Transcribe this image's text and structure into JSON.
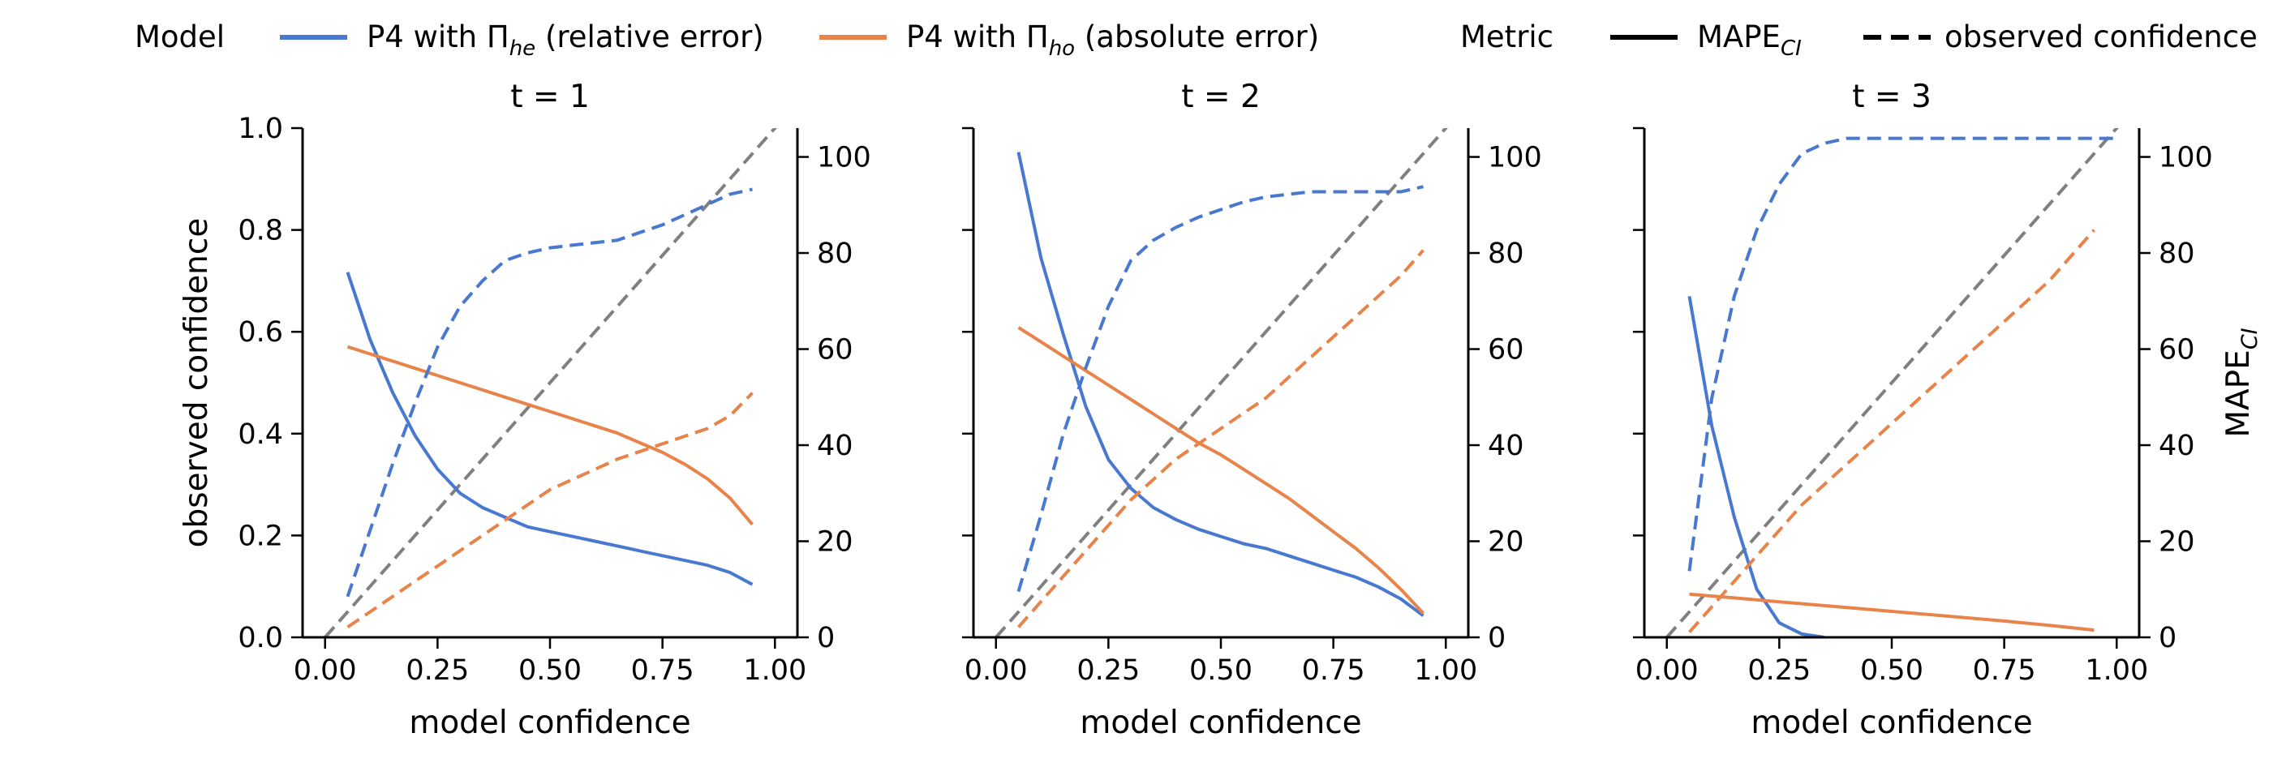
{
  "legend": {
    "model_title": "Model",
    "model_entries": [
      {
        "prefix": "P4 with Π",
        "sub": "he",
        "suffix": " (relative error)",
        "color": "#4878cf"
      },
      {
        "prefix": "P4 with Π",
        "sub": "ho",
        "suffix": " (absolute error)",
        "color": "#e8834a"
      }
    ],
    "metric_title": "Metric",
    "metric_entries": [
      {
        "text": "MAPE",
        "sub": "CI",
        "style": "solid"
      },
      {
        "text": "observed confidence",
        "sub": "",
        "style": "dashed"
      }
    ]
  },
  "colors": {
    "he": "#4878cf",
    "ho": "#e8834a",
    "reference": "#808080"
  },
  "axes_labels": {
    "xlabel": "model confidence",
    "left_ylabel": "observed confidence",
    "right_ylabel_main": "MAPE",
    "right_ylabel_sub": "CI"
  },
  "chart_data": [
    {
      "type": "line",
      "title": "t = 1",
      "xlim": [
        -0.05,
        1.05
      ],
      "ylim_left": [
        0,
        1.0
      ],
      "ylim_right": [
        0,
        106
      ],
      "xticks": [
        "0.00",
        "0.25",
        "0.50",
        "0.75",
        "1.00"
      ],
      "yticks_left": [
        "0.0",
        "0.2",
        "0.4",
        "0.6",
        "0.8",
        "1.0"
      ],
      "yticks_right": [
        "0",
        "20",
        "40",
        "60",
        "80",
        "100"
      ],
      "show_left_labels": true,
      "show_right_label": false,
      "reference_line": {
        "x": [
          0,
          1.05
        ],
        "y": [
          0,
          1.05
        ]
      },
      "series": [
        {
          "model": "he",
          "metric": "MAPE_CI",
          "axis": "right",
          "x": [
            0.05,
            0.1,
            0.15,
            0.2,
            0.25,
            0.3,
            0.35,
            0.4,
            0.45,
            0.5,
            0.55,
            0.6,
            0.65,
            0.7,
            0.75,
            0.8,
            0.85,
            0.9,
            0.95
          ],
          "y": [
            76,
            62,
            51,
            42,
            35,
            30,
            27,
            25,
            23,
            22,
            21,
            20,
            19,
            18,
            17,
            16,
            15,
            13.5,
            11
          ]
        },
        {
          "model": "ho",
          "metric": "MAPE_CI",
          "axis": "right",
          "x": [
            0.05,
            0.1,
            0.15,
            0.2,
            0.25,
            0.3,
            0.35,
            0.4,
            0.45,
            0.5,
            0.55,
            0.6,
            0.65,
            0.7,
            0.75,
            0.8,
            0.85,
            0.9,
            0.95
          ],
          "y": [
            60.5,
            59,
            57.5,
            56,
            54.5,
            53,
            51.5,
            50,
            48.5,
            47,
            45.5,
            44,
            42.5,
            40.5,
            38.5,
            36,
            33,
            29,
            23.5
          ]
        },
        {
          "model": "he",
          "metric": "observed_confidence",
          "axis": "left",
          "x": [
            0.05,
            0.1,
            0.15,
            0.2,
            0.25,
            0.3,
            0.35,
            0.4,
            0.45,
            0.5,
            0.55,
            0.6,
            0.65,
            0.7,
            0.75,
            0.8,
            0.85,
            0.9,
            0.95
          ],
          "y": [
            0.08,
            0.21,
            0.34,
            0.46,
            0.57,
            0.65,
            0.7,
            0.74,
            0.755,
            0.765,
            0.77,
            0.775,
            0.78,
            0.795,
            0.81,
            0.83,
            0.85,
            0.87,
            0.88
          ]
        },
        {
          "model": "ho",
          "metric": "observed_confidence",
          "axis": "left",
          "x": [
            0.05,
            0.1,
            0.15,
            0.2,
            0.25,
            0.3,
            0.35,
            0.4,
            0.45,
            0.5,
            0.55,
            0.6,
            0.65,
            0.7,
            0.75,
            0.8,
            0.85,
            0.9,
            0.95
          ],
          "y": [
            0.02,
            0.05,
            0.08,
            0.11,
            0.14,
            0.17,
            0.2,
            0.23,
            0.26,
            0.29,
            0.31,
            0.33,
            0.35,
            0.365,
            0.38,
            0.395,
            0.41,
            0.435,
            0.48
          ]
        }
      ]
    },
    {
      "type": "line",
      "title": "t = 2",
      "xlim": [
        -0.05,
        1.05
      ],
      "ylim_left": [
        0,
        1.0
      ],
      "ylim_right": [
        0,
        106
      ],
      "xticks": [
        "0.00",
        "0.25",
        "0.50",
        "0.75",
        "1.00"
      ],
      "yticks_left": [
        "0.0",
        "0.2",
        "0.4",
        "0.6",
        "0.8",
        "1.0"
      ],
      "yticks_right": [
        "0",
        "20",
        "40",
        "60",
        "80",
        "100"
      ],
      "show_left_labels": false,
      "show_right_label": false,
      "reference_line": {
        "x": [
          0,
          1.05
        ],
        "y": [
          0,
          1.05
        ]
      },
      "series": [
        {
          "model": "he",
          "metric": "MAPE_CI",
          "axis": "right",
          "x": [
            0.05,
            0.1,
            0.15,
            0.2,
            0.25,
            0.3,
            0.35,
            0.4,
            0.45,
            0.5,
            0.55,
            0.6,
            0.65,
            0.7,
            0.75,
            0.8,
            0.85,
            0.9,
            0.95
          ],
          "y": [
            101,
            79,
            63,
            48,
            37,
            31,
            27,
            24.5,
            22.5,
            21,
            19.5,
            18.5,
            17,
            15.5,
            14,
            12.5,
            10.5,
            8,
            4.5
          ]
        },
        {
          "model": "ho",
          "metric": "MAPE_CI",
          "axis": "right",
          "x": [
            0.05,
            0.1,
            0.15,
            0.2,
            0.25,
            0.3,
            0.35,
            0.4,
            0.45,
            0.5,
            0.55,
            0.6,
            0.65,
            0.7,
            0.75,
            0.8,
            0.85,
            0.9,
            0.95
          ],
          "y": [
            64.5,
            61.5,
            58.5,
            55.5,
            52.5,
            49.5,
            46.5,
            43.5,
            40.5,
            38,
            35,
            32,
            29,
            25.5,
            22,
            18.5,
            14.5,
            10,
            5
          ]
        },
        {
          "model": "he",
          "metric": "observed_confidence",
          "axis": "left",
          "x": [
            0.05,
            0.1,
            0.15,
            0.2,
            0.25,
            0.3,
            0.35,
            0.4,
            0.45,
            0.5,
            0.55,
            0.6,
            0.65,
            0.7,
            0.75,
            0.8,
            0.85,
            0.9,
            0.95
          ],
          "y": [
            0.09,
            0.24,
            0.4,
            0.53,
            0.65,
            0.74,
            0.78,
            0.805,
            0.825,
            0.84,
            0.855,
            0.865,
            0.87,
            0.875,
            0.875,
            0.875,
            0.875,
            0.875,
            0.885
          ]
        },
        {
          "model": "ho",
          "metric": "observed_confidence",
          "axis": "left",
          "x": [
            0.05,
            0.1,
            0.15,
            0.2,
            0.25,
            0.3,
            0.35,
            0.4,
            0.45,
            0.5,
            0.55,
            0.6,
            0.65,
            0.7,
            0.75,
            0.8,
            0.85,
            0.9,
            0.95
          ],
          "y": [
            0.02,
            0.07,
            0.12,
            0.17,
            0.22,
            0.27,
            0.31,
            0.35,
            0.38,
            0.41,
            0.44,
            0.47,
            0.51,
            0.55,
            0.59,
            0.63,
            0.67,
            0.71,
            0.76
          ]
        }
      ]
    },
    {
      "type": "line",
      "title": "t = 3",
      "xlim": [
        -0.05,
        1.05
      ],
      "ylim_left": [
        0,
        1.0
      ],
      "ylim_right": [
        0,
        106
      ],
      "xticks": [
        "0.00",
        "0.25",
        "0.50",
        "0.75",
        "1.00"
      ],
      "yticks_left": [
        "0.0",
        "0.2",
        "0.4",
        "0.6",
        "0.8",
        "1.0"
      ],
      "yticks_right": [
        "0",
        "20",
        "40",
        "60",
        "80",
        "100"
      ],
      "show_left_labels": false,
      "show_right_label": true,
      "reference_line": {
        "x": [
          0,
          1.05
        ],
        "y": [
          0,
          1.05
        ]
      },
      "series": [
        {
          "model": "he",
          "metric": "MAPE_CI",
          "axis": "right",
          "x": [
            0.05,
            0.1,
            0.15,
            0.2,
            0.25,
            0.3,
            0.35
          ],
          "y": [
            71,
            44,
            25,
            10,
            3,
            0.7,
            0
          ]
        },
        {
          "model": "ho",
          "metric": "MAPE_CI",
          "axis": "right",
          "x": [
            0.05,
            0.15,
            0.25,
            0.35,
            0.45,
            0.55,
            0.65,
            0.75,
            0.85,
            0.95
          ],
          "y": [
            9,
            8.2,
            7.4,
            6.6,
            5.8,
            5,
            4.2,
            3.4,
            2.5,
            1.5
          ]
        },
        {
          "model": "he",
          "metric": "observed_confidence",
          "axis": "left",
          "x": [
            0.05,
            0.1,
            0.15,
            0.2,
            0.25,
            0.3,
            0.35,
            0.4,
            0.6,
            0.8,
            1.0
          ],
          "y": [
            0.13,
            0.47,
            0.67,
            0.8,
            0.89,
            0.95,
            0.97,
            0.98,
            0.98,
            0.98,
            0.98
          ]
        },
        {
          "model": "ho",
          "metric": "observed_confidence",
          "axis": "left",
          "x": [
            0.05,
            0.1,
            0.15,
            0.2,
            0.25,
            0.3,
            0.35,
            0.4,
            0.45,
            0.5,
            0.55,
            0.6,
            0.65,
            0.7,
            0.75,
            0.8,
            0.85,
            0.9,
            0.95
          ],
          "y": [
            0.01,
            0.06,
            0.11,
            0.16,
            0.21,
            0.26,
            0.3,
            0.34,
            0.38,
            0.42,
            0.46,
            0.5,
            0.54,
            0.58,
            0.62,
            0.66,
            0.7,
            0.75,
            0.8
          ]
        }
      ]
    }
  ]
}
